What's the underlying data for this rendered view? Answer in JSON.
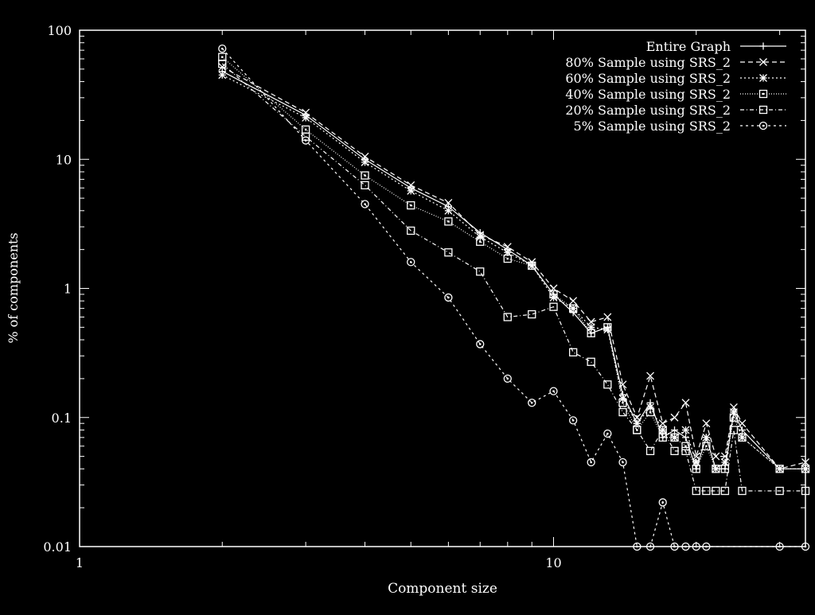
{
  "chart_data": {
    "type": "line",
    "title": "",
    "xlabel": "Component size",
    "ylabel": "% of components",
    "xscale": "log",
    "yscale": "log",
    "xlim": [
      1,
      34
    ],
    "ylim": [
      0.01,
      100
    ],
    "x_ticks": [
      {
        "value": 1,
        "label": "1"
      },
      {
        "value": 10,
        "label": "10"
      }
    ],
    "y_ticks": [
      {
        "value": 0.01,
        "label": "0.01"
      },
      {
        "value": 0.1,
        "label": "0.1"
      },
      {
        "value": 1,
        "label": "1"
      },
      {
        "value": 10,
        "label": "10"
      },
      {
        "value": 100,
        "label": "100"
      }
    ],
    "legend_position": "top-right",
    "grid": false,
    "colors": {
      "background": "#000000",
      "foreground": "#ffffff"
    },
    "series": [
      {
        "name": "Entire Graph",
        "marker": "plus",
        "dash": "",
        "points": [
          [
            2,
            48
          ],
          [
            3,
            22
          ],
          [
            4,
            10
          ],
          [
            5,
            6
          ],
          [
            6,
            4.3
          ],
          [
            7,
            2.7
          ],
          [
            8,
            2.0
          ],
          [
            9,
            1.5
          ],
          [
            10,
            0.9
          ],
          [
            11,
            0.65
          ],
          [
            12,
            0.45
          ],
          [
            13,
            0.5
          ],
          [
            14,
            0.15
          ],
          [
            15,
            0.09
          ],
          [
            16,
            0.13
          ],
          [
            17,
            0.07
          ],
          [
            18,
            0.08
          ],
          [
            19,
            0.07
          ],
          [
            20,
            0.04
          ],
          [
            21,
            0.07
          ],
          [
            22,
            0.04
          ],
          [
            23,
            0.04
          ],
          [
            24,
            0.11
          ],
          [
            25,
            0.08
          ],
          [
            30,
            0.04
          ],
          [
            34,
            0.04
          ]
        ]
      },
      {
        "name": "80% Sample using SRS_2",
        "marker": "cross",
        "dash": "6,4",
        "points": [
          [
            2,
            52
          ],
          [
            3,
            23
          ],
          [
            4,
            10.5
          ],
          [
            5,
            6.3
          ],
          [
            6,
            4.6
          ],
          [
            7,
            2.6
          ],
          [
            8,
            2.1
          ],
          [
            9,
            1.6
          ],
          [
            10,
            1.0
          ],
          [
            11,
            0.8
          ],
          [
            12,
            0.55
          ],
          [
            13,
            0.6
          ],
          [
            14,
            0.18
          ],
          [
            15,
            0.1
          ],
          [
            16,
            0.21
          ],
          [
            17,
            0.09
          ],
          [
            18,
            0.1
          ],
          [
            19,
            0.13
          ],
          [
            20,
            0.05
          ],
          [
            21,
            0.09
          ],
          [
            22,
            0.05
          ],
          [
            23,
            0.05
          ],
          [
            24,
            0.12
          ],
          [
            25,
            0.09
          ],
          [
            30,
            0.04
          ],
          [
            34,
            0.045
          ]
        ]
      },
      {
        "name": "60% Sample using SRS_2",
        "marker": "star",
        "dash": "2,3",
        "points": [
          [
            2,
            45
          ],
          [
            3,
            21
          ],
          [
            4,
            9.5
          ],
          [
            5,
            5.7
          ],
          [
            6,
            4.0
          ],
          [
            7,
            2.5
          ],
          [
            8,
            1.9
          ],
          [
            9,
            1.5
          ],
          [
            10,
            0.85
          ],
          [
            11,
            0.7
          ],
          [
            12,
            0.5
          ],
          [
            13,
            0.48
          ],
          [
            14,
            0.14
          ],
          [
            15,
            0.09
          ],
          [
            16,
            0.12
          ],
          [
            17,
            0.08
          ],
          [
            18,
            0.07
          ],
          [
            19,
            0.08
          ],
          [
            20,
            0.045
          ],
          [
            21,
            0.07
          ],
          [
            22,
            0.04
          ],
          [
            23,
            0.045
          ],
          [
            24,
            0.11
          ],
          [
            25,
            0.07
          ],
          [
            30,
            0.04
          ],
          [
            34,
            0.04
          ]
        ]
      },
      {
        "name": "40% Sample using SRS_2",
        "marker": "boxdot",
        "dash": "1,2",
        "points": [
          [
            2,
            62
          ],
          [
            3,
            17
          ],
          [
            4,
            7.5
          ],
          [
            5,
            4.4
          ],
          [
            6,
            3.3
          ],
          [
            7,
            2.3
          ],
          [
            8,
            1.7
          ],
          [
            9,
            1.5
          ],
          [
            10,
            0.9
          ],
          [
            11,
            0.7
          ],
          [
            12,
            0.45
          ],
          [
            13,
            0.5
          ],
          [
            14,
            0.13
          ],
          [
            15,
            0.08
          ],
          [
            16,
            0.11
          ],
          [
            17,
            0.07
          ],
          [
            18,
            0.07
          ],
          [
            19,
            0.06
          ],
          [
            20,
            0.04
          ],
          [
            21,
            0.06
          ],
          [
            22,
            0.04
          ],
          [
            23,
            0.04
          ],
          [
            24,
            0.1
          ],
          [
            25,
            0.07
          ],
          [
            30,
            0.04
          ],
          [
            34,
            0.04
          ]
        ]
      },
      {
        "name": "20% Sample using SRS_2",
        "marker": "square",
        "dash": "5,3,1,3",
        "points": [
          [
            2,
            55
          ],
          [
            3,
            15
          ],
          [
            4,
            6.3
          ],
          [
            5,
            2.8
          ],
          [
            6,
            1.9
          ],
          [
            7,
            1.35
          ],
          [
            8,
            0.6
          ],
          [
            9,
            0.63
          ],
          [
            10,
            0.72
          ],
          [
            11,
            0.32
          ],
          [
            12,
            0.27
          ],
          [
            13,
            0.18
          ],
          [
            14,
            0.11
          ],
          [
            15,
            0.08
          ],
          [
            16,
            0.055
          ],
          [
            17,
            0.08
          ],
          [
            18,
            0.055
          ],
          [
            19,
            0.055
          ],
          [
            20,
            0.027
          ],
          [
            21,
            0.027
          ],
          [
            22,
            0.027
          ],
          [
            23,
            0.027
          ],
          [
            24,
            0.08
          ],
          [
            25,
            0.027
          ],
          [
            30,
            0.027
          ],
          [
            34,
            0.027
          ]
        ]
      },
      {
        "name": "5% Sample using SRS_2",
        "marker": "circle",
        "dash": "3,4",
        "points": [
          [
            2,
            72
          ],
          [
            3,
            14
          ],
          [
            4,
            4.5
          ],
          [
            5,
            1.6
          ],
          [
            6,
            0.85
          ],
          [
            7,
            0.37
          ],
          [
            8,
            0.2
          ],
          [
            9,
            0.13
          ],
          [
            10,
            0.16
          ],
          [
            11,
            0.095
          ],
          [
            12,
            0.045
          ],
          [
            13,
            0.075
          ],
          [
            14,
            0.045
          ],
          [
            15,
            0.01
          ],
          [
            16,
            0.01
          ],
          [
            17,
            0.022
          ],
          [
            18,
            0.01
          ],
          [
            19,
            0.01
          ],
          [
            20,
            0.01
          ],
          [
            21,
            0.01
          ],
          [
            30,
            0.01
          ],
          [
            34,
            0.01
          ]
        ]
      }
    ]
  }
}
